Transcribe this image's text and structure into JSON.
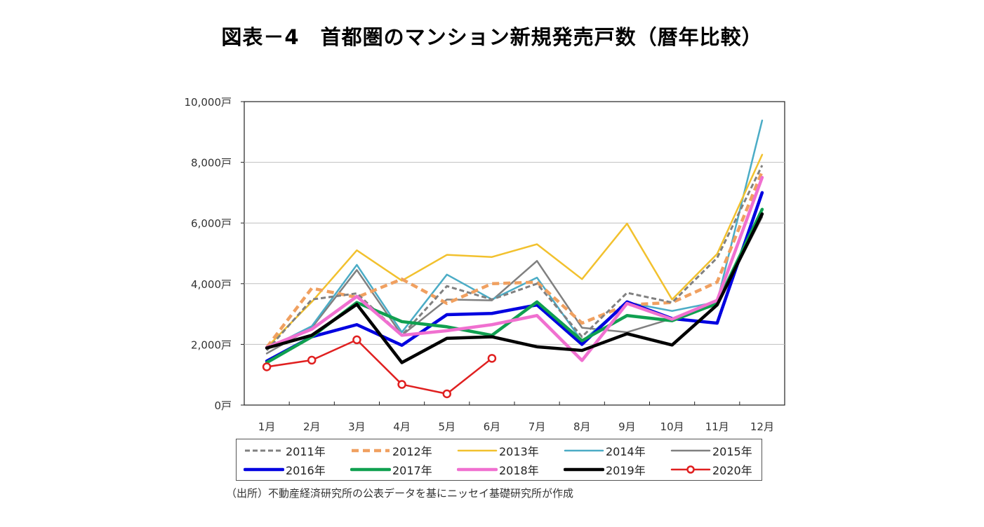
{
  "title": "図表－4　首都圏のマンション新規発売戸数（暦年比較）",
  "source_note": "（出所）不動産経済研究所の公表データを基にニッセイ基礎研究所が作成",
  "chart_data": {
    "type": "line",
    "title": "図表－4　首都圏のマンション新規発売戸数（暦年比較）",
    "xlabel": "",
    "ylabel": "",
    "categories": [
      "1月",
      "2月",
      "3月",
      "4月",
      "5月",
      "6月",
      "7月",
      "8月",
      "9月",
      "10月",
      "11月",
      "12月"
    ],
    "ylim": [
      0,
      10000
    ],
    "yticks": [
      0,
      2000,
      4000,
      6000,
      8000,
      10000
    ],
    "ytick_labels": [
      "0戸",
      "2,000戸",
      "4,000戸",
      "6,000戸",
      "8,000戸",
      "10,000戸"
    ],
    "grid": true,
    "legend_position": "bottom",
    "series": [
      {
        "name": "2011年",
        "color": "#808080",
        "style": "dashed-thin",
        "values": [
          1800,
          3480,
          3680,
          2300,
          3920,
          3480,
          4000,
          2250,
          3700,
          3380,
          4850,
          7900
        ]
      },
      {
        "name": "2012年",
        "color": "#F0A060",
        "style": "dashed-thick",
        "values": [
          1900,
          3850,
          3550,
          4150,
          3350,
          4000,
          4050,
          2700,
          3300,
          3380,
          4050,
          7700
        ]
      },
      {
        "name": "2013年",
        "color": "#F2C12E",
        "style": "solid-thin",
        "values": [
          1900,
          3400,
          5100,
          4100,
          4950,
          4880,
          5300,
          4150,
          5980,
          3480,
          4980,
          8250
        ]
      },
      {
        "name": "2014年",
        "color": "#4BACC6",
        "style": "solid-thin",
        "values": [
          1850,
          2600,
          4620,
          2400,
          4300,
          3480,
          4200,
          2100,
          3380,
          3100,
          3400,
          9380
        ]
      },
      {
        "name": "2015年",
        "color": "#808080",
        "style": "solid-thin",
        "values": [
          1700,
          2550,
          4450,
          2300,
          3480,
          3450,
          4750,
          2550,
          2400,
          2850,
          3300,
          6200
        ]
      },
      {
        "name": "2016年",
        "color": "#0000E0",
        "style": "solid-thick",
        "values": [
          1450,
          2250,
          2650,
          1970,
          2980,
          3020,
          3300,
          2000,
          3400,
          2850,
          2700,
          7000
        ]
      },
      {
        "name": "2017年",
        "color": "#10A050",
        "style": "solid-thick",
        "values": [
          1400,
          2250,
          3380,
          2750,
          2580,
          2300,
          3400,
          2120,
          2950,
          2780,
          3350,
          6450
        ]
      },
      {
        "name": "2018年",
        "color": "#F070D0",
        "style": "solid-thick",
        "values": [
          1900,
          2500,
          3580,
          2300,
          2450,
          2650,
          2950,
          1470,
          3350,
          2830,
          3450,
          7500
        ]
      },
      {
        "name": "2019年",
        "color": "#000000",
        "style": "solid-thick",
        "values": [
          1880,
          2300,
          3320,
          1400,
          2200,
          2250,
          1920,
          1800,
          2350,
          1980,
          3300,
          6300
        ]
      },
      {
        "name": "2020年",
        "color": "#E02020",
        "style": "solid-marker",
        "values": [
          1260,
          1480,
          2150,
          680,
          370,
          1540,
          null,
          null,
          null,
          null,
          null,
          null
        ]
      }
    ]
  }
}
